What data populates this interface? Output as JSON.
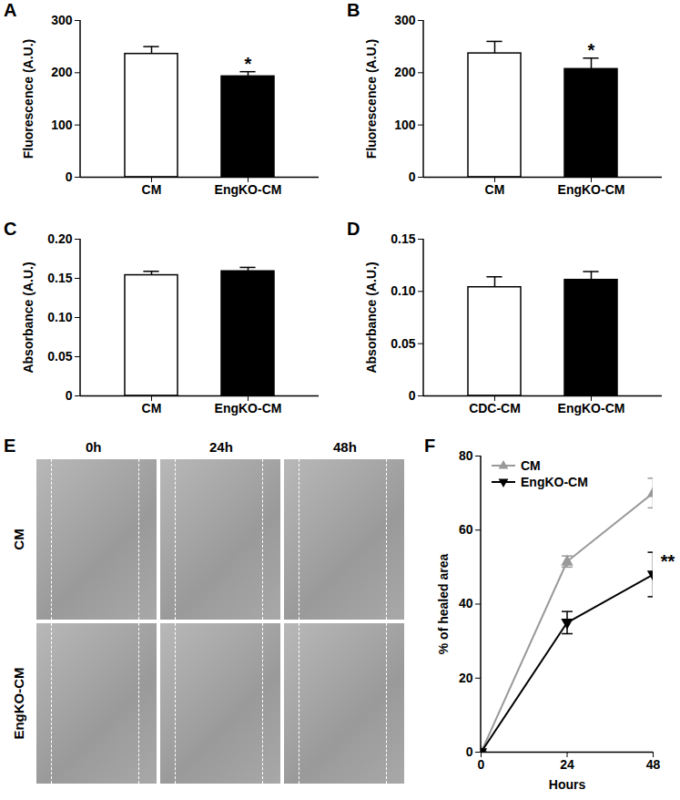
{
  "chart_data": [
    {
      "type": "bar",
      "title": "A",
      "categories": [
        "CM",
        "EngKO-CM"
      ],
      "values": [
        236,
        193
      ],
      "errors": [
        14,
        9
      ],
      "colors": [
        "#ffffff",
        "#000000"
      ],
      "y_label": "Fluorescence (A.U.)",
      "ylim": [
        0,
        300
      ],
      "yticks": [
        0,
        100,
        200,
        300
      ],
      "annotations": [
        {
          "x": "EngKO-CM",
          "text": "*"
        }
      ]
    },
    {
      "type": "bar",
      "title": "B",
      "categories": [
        "CM",
        "EngKO-CM"
      ],
      "values": [
        237,
        207
      ],
      "errors": [
        23,
        21
      ],
      "colors": [
        "#ffffff",
        "#000000"
      ],
      "y_label": "Fluorescence (A.U.)",
      "ylim": [
        0,
        300
      ],
      "yticks": [
        0,
        100,
        200,
        300
      ],
      "annotations": [
        {
          "x": "EngKO-CM",
          "text": "*"
        }
      ]
    },
    {
      "type": "bar",
      "title": "C",
      "categories": [
        "CM",
        "EngKO-CM"
      ],
      "values": [
        0.154,
        0.159
      ],
      "errors": [
        0.005,
        0.005
      ],
      "colors": [
        "#ffffff",
        "#000000"
      ],
      "y_label": "Absorbance (A.U.)",
      "ylim": [
        0,
        0.2
      ],
      "yticks": [
        0,
        0.05,
        {
          "value": 0.1,
          "label": "0.10"
        },
        0.15,
        {
          "value": 0.2,
          "label": "0.20"
        }
      ]
    },
    {
      "type": "bar",
      "title": "D",
      "categories": [
        "CDC-CM",
        "EngKO-CM"
      ],
      "values": [
        0.104,
        0.111
      ],
      "errors": [
        0.01,
        0.008
      ],
      "colors": [
        "#ffffff",
        "#000000"
      ],
      "y_label": "Absorbance (A.U.)",
      "ylim": [
        0,
        0.15
      ],
      "yticks": [
        0,
        0.05,
        {
          "value": 0.1,
          "label": "0.10"
        },
        0.15
      ]
    },
    {
      "type": "image_grid",
      "title": "E",
      "columns": [
        "0h",
        "24h",
        "48h"
      ],
      "rows": [
        "CM",
        "EngKO-CM"
      ]
    },
    {
      "type": "line",
      "title": "F",
      "x": [
        0,
        24,
        48
      ],
      "xlim": [
        0,
        48
      ],
      "xticks": [
        0,
        24,
        48
      ],
      "ylim": [
        0,
        80
      ],
      "yticks": [
        0,
        20,
        40,
        60,
        80
      ],
      "x_label": "Hours",
      "y_label": "% of healed area",
      "legend": "top-left",
      "series": [
        {
          "name": "CM",
          "color": "#999999",
          "marker": "triangle",
          "values": [
            0,
            51.5,
            70
          ],
          "errors": [
            0,
            1.5,
            4
          ]
        },
        {
          "name": "EngKO-CM",
          "color": "#000000",
          "marker": "triangle-down",
          "values": [
            0,
            35,
            48
          ],
          "errors": [
            0,
            3,
            6
          ]
        }
      ],
      "annotations": [
        {
          "x": 48,
          "series": "EngKO-CM",
          "text": "**"
        }
      ]
    }
  ]
}
